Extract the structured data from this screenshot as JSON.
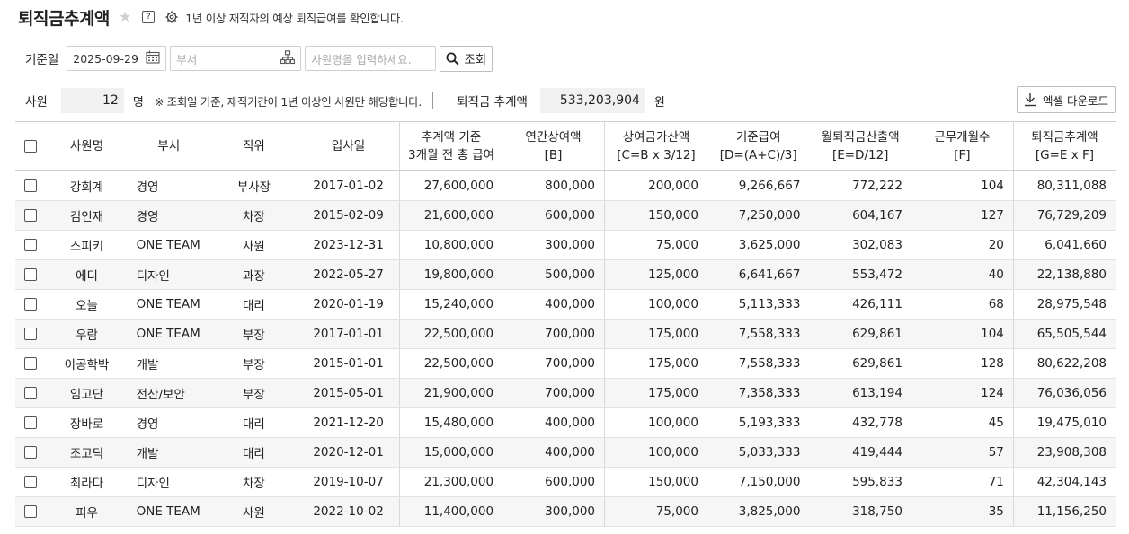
{
  "header": {
    "title": "퇴직금추계액",
    "description": "1년 이상 재직자의 예상 퇴직급여를 확인합니다.",
    "help_glyph": "?",
    "icons": [
      "star-icon",
      "help-icon",
      "gear-icon"
    ]
  },
  "filters": {
    "base_date_label": "기준일",
    "base_date_value": "2025-09-29",
    "dept_placeholder": "부서",
    "name_placeholder": "사원명을 입력하세요.",
    "search_label": "조회"
  },
  "summary": {
    "employee_label": "사원",
    "employee_count": "12",
    "employee_unit": "명",
    "note": "※ 조회일 기준, 재직기간이 1년 이상인 사원만 해당합니다.",
    "total_label": "퇴직금 추계액",
    "total_value": "533,203,904",
    "total_unit": "원",
    "excel_label": "엑셀 다운로드"
  },
  "table": {
    "headers": {
      "name": "사원명",
      "dept": "부서",
      "position": "직위",
      "hire_date": "입사일",
      "base_line1": "추계액 기준",
      "base_line2": "3개월 전 총 급여",
      "bonus_line1": "연간상여액",
      "bonus_line2": "[B]",
      "bonus_add_line1": "상여금가산액",
      "bonus_add_line2": "[C=B x 3/12]",
      "std_pay_line1": "기준급여",
      "std_pay_line2": "[D=(A+C)/3]",
      "monthly_line1": "월퇴직금산출액",
      "monthly_line2": "[E=D/12]",
      "months_line1": "근무개월수",
      "months_line2": "[F]",
      "estimate_line1": "퇴직금추계액",
      "estimate_line2": "[G=E x F]"
    },
    "rows": [
      {
        "name": "강회계",
        "dept": "경영",
        "position": "부사장",
        "hire_date": "2017-01-02",
        "base": "27,600,000",
        "bonus": "800,000",
        "bonus_add": "200,000",
        "std_pay": "9,266,667",
        "monthly": "772,222",
        "months": "104",
        "estimate": "80,311,088"
      },
      {
        "name": "김인재",
        "dept": "경영",
        "position": "차장",
        "hire_date": "2015-02-09",
        "base": "21,600,000",
        "bonus": "600,000",
        "bonus_add": "150,000",
        "std_pay": "7,250,000",
        "monthly": "604,167",
        "months": "127",
        "estimate": "76,729,209"
      },
      {
        "name": "스피키",
        "dept": "ONE TEAM",
        "position": "사원",
        "hire_date": "2023-12-31",
        "base": "10,800,000",
        "bonus": "300,000",
        "bonus_add": "75,000",
        "std_pay": "3,625,000",
        "monthly": "302,083",
        "months": "20",
        "estimate": "6,041,660"
      },
      {
        "name": "에디",
        "dept": "디자인",
        "position": "과장",
        "hire_date": "2022-05-27",
        "base": "19,800,000",
        "bonus": "500,000",
        "bonus_add": "125,000",
        "std_pay": "6,641,667",
        "monthly": "553,472",
        "months": "40",
        "estimate": "22,138,880"
      },
      {
        "name": "오늘",
        "dept": "ONE TEAM",
        "position": "대리",
        "hire_date": "2020-01-19",
        "base": "15,240,000",
        "bonus": "400,000",
        "bonus_add": "100,000",
        "std_pay": "5,113,333",
        "monthly": "426,111",
        "months": "68",
        "estimate": "28,975,548"
      },
      {
        "name": "우람",
        "dept": "ONE TEAM",
        "position": "부장",
        "hire_date": "2017-01-01",
        "base": "22,500,000",
        "bonus": "700,000",
        "bonus_add": "175,000",
        "std_pay": "7,558,333",
        "monthly": "629,861",
        "months": "104",
        "estimate": "65,505,544"
      },
      {
        "name": "이공학박",
        "dept": "개발",
        "position": "부장",
        "hire_date": "2015-01-01",
        "base": "22,500,000",
        "bonus": "700,000",
        "bonus_add": "175,000",
        "std_pay": "7,558,333",
        "monthly": "629,861",
        "months": "128",
        "estimate": "80,622,208"
      },
      {
        "name": "임고단",
        "dept": "전산/보안",
        "position": "부장",
        "hire_date": "2015-05-01",
        "base": "21,900,000",
        "bonus": "700,000",
        "bonus_add": "175,000",
        "std_pay": "7,358,333",
        "monthly": "613,194",
        "months": "124",
        "estimate": "76,036,056"
      },
      {
        "name": "장바로",
        "dept": "경영",
        "position": "대리",
        "hire_date": "2021-12-20",
        "base": "15,480,000",
        "bonus": "400,000",
        "bonus_add": "100,000",
        "std_pay": "5,193,333",
        "monthly": "432,778",
        "months": "45",
        "estimate": "19,475,010"
      },
      {
        "name": "조고딕",
        "dept": "개발",
        "position": "대리",
        "hire_date": "2020-12-01",
        "base": "15,000,000",
        "bonus": "400,000",
        "bonus_add": "100,000",
        "std_pay": "5,033,333",
        "monthly": "419,444",
        "months": "57",
        "estimate": "23,908,308"
      },
      {
        "name": "최라다",
        "dept": "디자인",
        "position": "차장",
        "hire_date": "2019-10-07",
        "base": "21,300,000",
        "bonus": "600,000",
        "bonus_add": "150,000",
        "std_pay": "7,150,000",
        "monthly": "595,833",
        "months": "71",
        "estimate": "42,304,143"
      },
      {
        "name": "피우",
        "dept": "ONE TEAM",
        "position": "사원",
        "hire_date": "2022-10-02",
        "base": "11,400,000",
        "bonus": "300,000",
        "bonus_add": "75,000",
        "std_pay": "3,825,000",
        "monthly": "318,750",
        "months": "35",
        "estimate": "11,156,250"
      }
    ]
  }
}
